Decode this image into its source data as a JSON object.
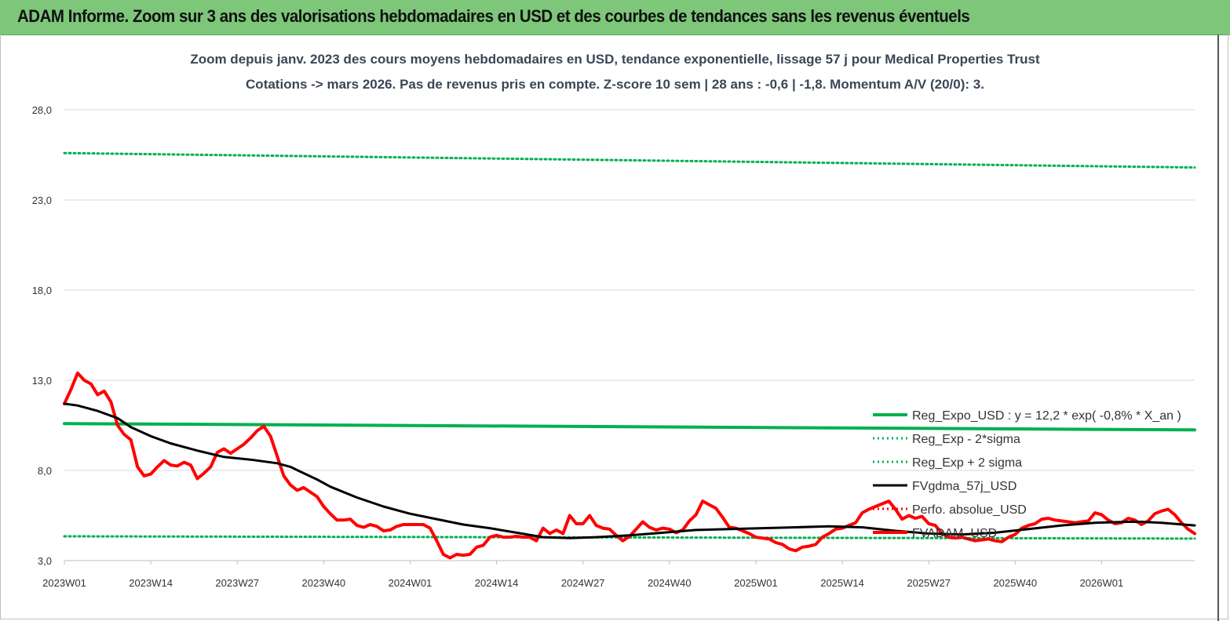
{
  "banner": {
    "title": "ADAM Informe. Zoom sur 3 ans des valorisations hebdomadaires en USD et des courbes de tendances sans les revenus éventuels",
    "bg_color": "#7dc67a"
  },
  "chart_data": {
    "type": "line",
    "title": "Zoom depuis janv. 2023 des cours moyens hebdomadaires en USD, tendance exponentielle, lissage 57 j pour Medical Properties Trust",
    "subtitle": "Cotations -> mars 2026. Pas de revenus pris en compte. Z-score 10 sem  | 28 ans : -0,6 | -1,8. Momentum A/V (20/0): 3.",
    "xlabel": "",
    "ylabel": "",
    "ylim": [
      3.0,
      28.0
    ],
    "y_ticks": [
      "3,0",
      "8,0",
      "13,0",
      "18,0",
      "23,0",
      "28,0"
    ],
    "y_tick_values": [
      3,
      8,
      13,
      18,
      23,
      28
    ],
    "x_ticks": [
      "2023W01",
      "2023W14",
      "2023W27",
      "2023W40",
      "2024W01",
      "2024W14",
      "2024W27",
      "2024W40",
      "2025W01",
      "2025W14",
      "2025W27",
      "2025W40",
      "2026W01"
    ],
    "x_tick_index": [
      0,
      13,
      26,
      39,
      52,
      65,
      78,
      91,
      104,
      117,
      130,
      143,
      156
    ],
    "x_count": 171,
    "grid": "horizontal",
    "legend_position": "right",
    "series": [
      {
        "name": "Reg_Expo_USD : y = 12,2 * exp( -0,8% *  X_an )",
        "color": "#00b050",
        "style": "solid-thick",
        "points": [
          [
            0,
            10.6
          ],
          [
            170,
            10.25
          ]
        ]
      },
      {
        "name": "Reg_Exp - 2*sigma",
        "color": "#00b050",
        "style": "dotted",
        "points": [
          [
            0,
            4.35
          ],
          [
            170,
            4.22
          ]
        ]
      },
      {
        "name": "Reg_Exp + 2 sigma",
        "color": "#00b050",
        "style": "dotted",
        "points": [
          [
            0,
            25.6
          ],
          [
            170,
            24.8
          ]
        ]
      },
      {
        "name": "FVgdma_57j_USD",
        "color": "#000000",
        "style": "solid",
        "points": [
          [
            0,
            11.7
          ],
          [
            2,
            11.6
          ],
          [
            5,
            11.3
          ],
          [
            8,
            10.9
          ],
          [
            10,
            10.4
          ],
          [
            13,
            9.9
          ],
          [
            16,
            9.5
          ],
          [
            20,
            9.1
          ],
          [
            24,
            8.75
          ],
          [
            28,
            8.6
          ],
          [
            32,
            8.4
          ],
          [
            34,
            8.2
          ],
          [
            36,
            7.85
          ],
          [
            38,
            7.5
          ],
          [
            40,
            7.1
          ],
          [
            44,
            6.5
          ],
          [
            48,
            6.0
          ],
          [
            52,
            5.6
          ],
          [
            56,
            5.3
          ],
          [
            60,
            5.0
          ],
          [
            64,
            4.8
          ],
          [
            68,
            4.55
          ],
          [
            72,
            4.3
          ],
          [
            76,
            4.25
          ],
          [
            80,
            4.3
          ],
          [
            85,
            4.4
          ],
          [
            90,
            4.55
          ],
          [
            95,
            4.7
          ],
          [
            100,
            4.75
          ],
          [
            105,
            4.8
          ],
          [
            110,
            4.85
          ],
          [
            115,
            4.9
          ],
          [
            120,
            4.85
          ],
          [
            125,
            4.65
          ],
          [
            130,
            4.5
          ],
          [
            135,
            4.45
          ],
          [
            140,
            4.55
          ],
          [
            145,
            4.75
          ],
          [
            150,
            4.95
          ],
          [
            155,
            5.1
          ],
          [
            160,
            5.15
          ],
          [
            162,
            5.15
          ],
          [
            165,
            5.1
          ],
          [
            170,
            4.95
          ]
        ]
      },
      {
        "name": "Perfo. absolue_USD",
        "color": "#ff0000",
        "style": "dotted",
        "points": []
      },
      {
        "name": "FVADAM_USD",
        "color": "#ff0000",
        "style": "solid-thick",
        "points": [
          [
            0,
            11.7
          ],
          [
            1,
            12.5
          ],
          [
            2,
            13.4
          ],
          [
            3,
            13.0
          ],
          [
            4,
            12.8
          ],
          [
            5,
            12.2
          ],
          [
            6,
            12.4
          ],
          [
            7,
            11.8
          ],
          [
            8,
            10.5
          ],
          [
            9,
            10.0
          ],
          [
            10,
            9.7
          ],
          [
            11,
            8.2
          ],
          [
            12,
            7.7
          ],
          [
            13,
            7.8
          ],
          [
            14,
            8.2
          ],
          [
            15,
            8.55
          ],
          [
            16,
            8.3
          ],
          [
            17,
            8.25
          ],
          [
            18,
            8.45
          ],
          [
            19,
            8.3
          ],
          [
            20,
            7.55
          ],
          [
            21,
            7.85
          ],
          [
            22,
            8.2
          ],
          [
            23,
            9.0
          ],
          [
            24,
            9.2
          ],
          [
            25,
            8.95
          ],
          [
            26,
            9.2
          ],
          [
            27,
            9.45
          ],
          [
            28,
            9.8
          ],
          [
            29,
            10.2
          ],
          [
            30,
            10.45
          ],
          [
            31,
            9.9
          ],
          [
            32,
            8.8
          ],
          [
            33,
            7.7
          ],
          [
            34,
            7.2
          ],
          [
            35,
            6.9
          ],
          [
            36,
            7.05
          ],
          [
            37,
            6.8
          ],
          [
            38,
            6.55
          ],
          [
            39,
            6.0
          ],
          [
            40,
            5.6
          ],
          [
            41,
            5.25
          ],
          [
            42,
            5.25
          ],
          [
            43,
            5.3
          ],
          [
            44,
            4.95
          ],
          [
            45,
            4.85
          ],
          [
            46,
            5.0
          ],
          [
            47,
            4.9
          ],
          [
            48,
            4.65
          ],
          [
            49,
            4.7
          ],
          [
            50,
            4.9
          ],
          [
            51,
            5.0
          ],
          [
            52,
            5.0
          ],
          [
            53,
            5.0
          ],
          [
            54,
            5.0
          ],
          [
            55,
            4.8
          ],
          [
            56,
            4.1
          ],
          [
            57,
            3.35
          ],
          [
            58,
            3.15
          ],
          [
            59,
            3.35
          ],
          [
            60,
            3.3
          ],
          [
            61,
            3.35
          ],
          [
            62,
            3.75
          ],
          [
            63,
            3.85
          ],
          [
            64,
            4.3
          ],
          [
            65,
            4.4
          ],
          [
            66,
            4.3
          ],
          [
            67,
            4.3
          ],
          [
            68,
            4.35
          ],
          [
            69,
            4.3
          ],
          [
            70,
            4.3
          ],
          [
            71,
            4.1
          ],
          [
            72,
            4.8
          ],
          [
            73,
            4.5
          ],
          [
            74,
            4.7
          ],
          [
            75,
            4.5
          ],
          [
            76,
            5.5
          ],
          [
            77,
            5.05
          ],
          [
            78,
            5.05
          ],
          [
            79,
            5.5
          ],
          [
            80,
            4.95
          ],
          [
            81,
            4.8
          ],
          [
            82,
            4.75
          ],
          [
            83,
            4.4
          ],
          [
            84,
            4.1
          ],
          [
            85,
            4.35
          ],
          [
            86,
            4.75
          ],
          [
            87,
            5.15
          ],
          [
            88,
            4.85
          ],
          [
            89,
            4.7
          ],
          [
            90,
            4.8
          ],
          [
            91,
            4.75
          ],
          [
            92,
            4.55
          ],
          [
            93,
            4.7
          ],
          [
            94,
            5.2
          ],
          [
            95,
            5.55
          ],
          [
            96,
            6.3
          ],
          [
            97,
            6.1
          ],
          [
            98,
            5.9
          ],
          [
            99,
            5.4
          ],
          [
            100,
            4.85
          ],
          [
            101,
            4.8
          ],
          [
            102,
            4.65
          ],
          [
            103,
            4.5
          ],
          [
            104,
            4.3
          ],
          [
            105,
            4.25
          ],
          [
            106,
            4.2
          ],
          [
            107,
            4.0
          ],
          [
            108,
            3.9
          ],
          [
            109,
            3.65
          ],
          [
            110,
            3.55
          ],
          [
            111,
            3.75
          ],
          [
            112,
            3.8
          ],
          [
            113,
            3.9
          ],
          [
            114,
            4.3
          ],
          [
            115,
            4.5
          ],
          [
            116,
            4.75
          ],
          [
            117,
            4.8
          ],
          [
            118,
            4.95
          ],
          [
            119,
            5.1
          ],
          [
            120,
            5.65
          ],
          [
            121,
            5.85
          ],
          [
            122,
            6.0
          ],
          [
            123,
            6.15
          ],
          [
            124,
            6.3
          ],
          [
            125,
            5.85
          ],
          [
            126,
            5.3
          ],
          [
            127,
            5.5
          ],
          [
            128,
            5.35
          ],
          [
            129,
            5.45
          ],
          [
            130,
            5.05
          ],
          [
            131,
            4.95
          ],
          [
            132,
            4.5
          ],
          [
            133,
            4.3
          ],
          [
            134,
            4.25
          ],
          [
            135,
            4.3
          ],
          [
            136,
            4.2
          ],
          [
            137,
            4.1
          ],
          [
            138,
            4.15
          ],
          [
            139,
            4.2
          ],
          [
            140,
            4.1
          ],
          [
            141,
            4.05
          ],
          [
            142,
            4.3
          ],
          [
            143,
            4.45
          ],
          [
            144,
            4.8
          ],
          [
            145,
            4.95
          ],
          [
            146,
            5.05
          ],
          [
            147,
            5.3
          ],
          [
            148,
            5.35
          ],
          [
            149,
            5.25
          ],
          [
            150,
            5.2
          ],
          [
            151,
            5.15
          ],
          [
            152,
            5.1
          ],
          [
            153,
            5.15
          ],
          [
            154,
            5.2
          ],
          [
            155,
            5.65
          ],
          [
            156,
            5.55
          ],
          [
            157,
            5.25
          ],
          [
            158,
            5.05
          ],
          [
            159,
            5.1
          ],
          [
            160,
            5.35
          ],
          [
            161,
            5.25
          ],
          [
            162,
            5.0
          ],
          [
            163,
            5.2
          ],
          [
            164,
            5.6
          ],
          [
            165,
            5.75
          ],
          [
            166,
            5.85
          ],
          [
            167,
            5.55
          ],
          [
            168,
            5.1
          ],
          [
            169,
            4.75
          ],
          [
            170,
            4.5
          ]
        ]
      }
    ]
  }
}
